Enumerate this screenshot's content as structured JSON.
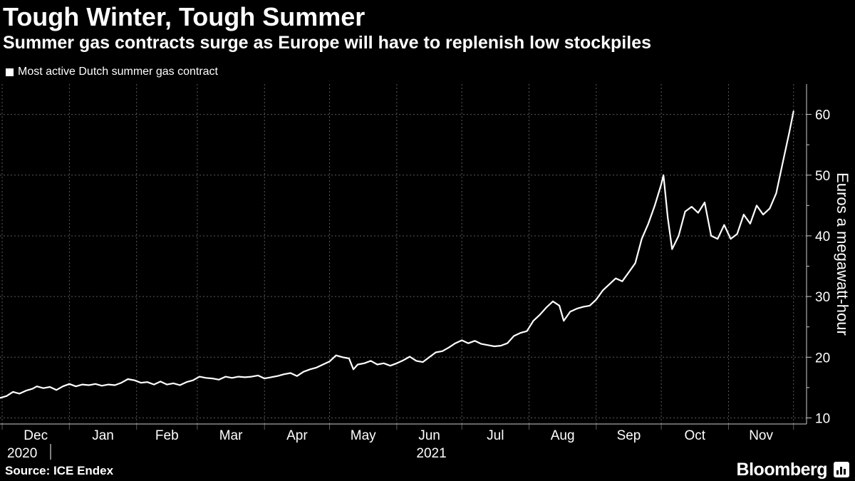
{
  "header": {
    "title": "Tough Winter, Tough Summer",
    "subtitle": "Summer gas contracts surge as Europe will have to replenish low stockpiles"
  },
  "footer": {
    "source": "Source: ICE Endex",
    "brand": "Bloomberg",
    "brand_icon": "bar-chart-icon"
  },
  "colors": {
    "background": "#000000",
    "text": "#ffffff",
    "line": "#ffffff",
    "grid": "#5a5a5a"
  },
  "chart_data": {
    "type": "line",
    "title": "Tough Winter, Tough Summer",
    "subtitle": "Summer gas contracts surge as Europe will have to replenish low stockpiles",
    "ylabel": "Euros a megawatt-hour",
    "xlabel": "",
    "y_axis_side": "right",
    "ylim": [
      9,
      65
    ],
    "xlim": [
      "2020-11-30",
      "2021-12-07"
    ],
    "y_ticks": [
      10,
      20,
      30,
      40,
      50,
      60
    ],
    "x_ticks": [
      {
        "date": "2020-12-01",
        "label": "Dec"
      },
      {
        "date": "2021-01-01",
        "label": "Jan"
      },
      {
        "date": "2021-02-01",
        "label": "Feb"
      },
      {
        "date": "2021-03-01",
        "label": "Mar"
      },
      {
        "date": "2021-04-01",
        "label": "Apr"
      },
      {
        "date": "2021-05-01",
        "label": "May"
      },
      {
        "date": "2021-06-01",
        "label": "Jun"
      },
      {
        "date": "2021-07-01",
        "label": "Jul"
      },
      {
        "date": "2021-08-01",
        "label": "Aug"
      },
      {
        "date": "2021-09-01",
        "label": "Sep"
      },
      {
        "date": "2021-10-01",
        "label": "Oct"
      },
      {
        "date": "2021-11-01",
        "label": "Nov"
      }
    ],
    "year_labels": [
      {
        "date": "2020-12-01",
        "label": "2020"
      },
      {
        "date": "2021-06-01",
        "label": "2021"
      }
    ],
    "grid": true,
    "legend_position": "top-left",
    "series": [
      {
        "name": "Most active Dutch summer gas contract",
        "color": "#ffffff",
        "points": [
          [
            "2020-11-30",
            13.3
          ],
          [
            "2020-12-03",
            13.6
          ],
          [
            "2020-12-06",
            14.3
          ],
          [
            "2020-12-09",
            14.0
          ],
          [
            "2020-12-12",
            14.5
          ],
          [
            "2020-12-15",
            14.8
          ],
          [
            "2020-12-17",
            15.2
          ],
          [
            "2020-12-20",
            14.9
          ],
          [
            "2020-12-23",
            15.1
          ],
          [
            "2020-12-26",
            14.6
          ],
          [
            "2020-12-29",
            15.2
          ],
          [
            "2021-01-01",
            15.6
          ],
          [
            "2021-01-04",
            15.2
          ],
          [
            "2021-01-07",
            15.5
          ],
          [
            "2021-01-10",
            15.4
          ],
          [
            "2021-01-13",
            15.6
          ],
          [
            "2021-01-16",
            15.3
          ],
          [
            "2021-01-19",
            15.5
          ],
          [
            "2021-01-22",
            15.4
          ],
          [
            "2021-01-25",
            15.8
          ],
          [
            "2021-01-28",
            16.4
          ],
          [
            "2021-01-31",
            16.2
          ],
          [
            "2021-02-03",
            15.8
          ],
          [
            "2021-02-06",
            15.9
          ],
          [
            "2021-02-09",
            15.5
          ],
          [
            "2021-02-12",
            16.0
          ],
          [
            "2021-02-15",
            15.5
          ],
          [
            "2021-02-18",
            15.7
          ],
          [
            "2021-02-21",
            15.4
          ],
          [
            "2021-02-24",
            15.9
          ],
          [
            "2021-02-27",
            16.2
          ],
          [
            "2021-03-02",
            16.8
          ],
          [
            "2021-03-05",
            16.6
          ],
          [
            "2021-03-08",
            16.5
          ],
          [
            "2021-03-11",
            16.3
          ],
          [
            "2021-03-14",
            16.8
          ],
          [
            "2021-03-17",
            16.6
          ],
          [
            "2021-03-20",
            16.8
          ],
          [
            "2021-03-23",
            16.7
          ],
          [
            "2021-03-26",
            16.8
          ],
          [
            "2021-03-29",
            17.0
          ],
          [
            "2021-04-01",
            16.5
          ],
          [
            "2021-04-04",
            16.7
          ],
          [
            "2021-04-07",
            16.9
          ],
          [
            "2021-04-10",
            17.2
          ],
          [
            "2021-04-13",
            17.4
          ],
          [
            "2021-04-16",
            16.9
          ],
          [
            "2021-04-19",
            17.6
          ],
          [
            "2021-04-22",
            18.0
          ],
          [
            "2021-04-25",
            18.3
          ],
          [
            "2021-04-28",
            18.8
          ],
          [
            "2021-05-01",
            19.3
          ],
          [
            "2021-05-04",
            20.3
          ],
          [
            "2021-05-07",
            20.0
          ],
          [
            "2021-05-10",
            19.8
          ],
          [
            "2021-05-12",
            18.0
          ],
          [
            "2021-05-14",
            18.8
          ],
          [
            "2021-05-17",
            19.0
          ],
          [
            "2021-05-20",
            19.4
          ],
          [
            "2021-05-23",
            18.8
          ],
          [
            "2021-05-26",
            19.0
          ],
          [
            "2021-05-29",
            18.6
          ],
          [
            "2021-06-01",
            19.0
          ],
          [
            "2021-06-04",
            19.5
          ],
          [
            "2021-06-07",
            20.1
          ],
          [
            "2021-06-10",
            19.4
          ],
          [
            "2021-06-13",
            19.2
          ],
          [
            "2021-06-16",
            20.0
          ],
          [
            "2021-06-19",
            20.8
          ],
          [
            "2021-06-22",
            21.0
          ],
          [
            "2021-06-25",
            21.6
          ],
          [
            "2021-06-28",
            22.3
          ],
          [
            "2021-07-01",
            22.8
          ],
          [
            "2021-07-04",
            22.3
          ],
          [
            "2021-07-07",
            22.7
          ],
          [
            "2021-07-10",
            22.2
          ],
          [
            "2021-07-13",
            22.0
          ],
          [
            "2021-07-16",
            21.8
          ],
          [
            "2021-07-19",
            21.9
          ],
          [
            "2021-07-22",
            22.3
          ],
          [
            "2021-07-25",
            23.5
          ],
          [
            "2021-07-28",
            24.0
          ],
          [
            "2021-07-31",
            24.3
          ],
          [
            "2021-08-03",
            26.0
          ],
          [
            "2021-08-06",
            27.0
          ],
          [
            "2021-08-09",
            28.2
          ],
          [
            "2021-08-12",
            29.2
          ],
          [
            "2021-08-15",
            28.5
          ],
          [
            "2021-08-17",
            26.0
          ],
          [
            "2021-08-20",
            27.5
          ],
          [
            "2021-08-23",
            28.0
          ],
          [
            "2021-08-26",
            28.3
          ],
          [
            "2021-08-29",
            28.5
          ],
          [
            "2021-09-01",
            29.5
          ],
          [
            "2021-09-04",
            31.0
          ],
          [
            "2021-09-07",
            32.0
          ],
          [
            "2021-09-10",
            33.0
          ],
          [
            "2021-09-13",
            32.5
          ],
          [
            "2021-09-16",
            34.0
          ],
          [
            "2021-09-19",
            35.5
          ],
          [
            "2021-09-22",
            39.5
          ],
          [
            "2021-09-25",
            42.0
          ],
          [
            "2021-09-28",
            45.0
          ],
          [
            "2021-10-01",
            48.5
          ],
          [
            "2021-10-02",
            50.0
          ],
          [
            "2021-10-04",
            43.0
          ],
          [
            "2021-10-06",
            37.8
          ],
          [
            "2021-10-09",
            40.0
          ],
          [
            "2021-10-12",
            44.0
          ],
          [
            "2021-10-15",
            44.8
          ],
          [
            "2021-10-18",
            43.8
          ],
          [
            "2021-10-21",
            45.5
          ],
          [
            "2021-10-24",
            40.0
          ],
          [
            "2021-10-27",
            39.5
          ],
          [
            "2021-10-30",
            41.8
          ],
          [
            "2021-11-02",
            39.5
          ],
          [
            "2021-11-05",
            40.3
          ],
          [
            "2021-11-08",
            43.5
          ],
          [
            "2021-11-11",
            42.0
          ],
          [
            "2021-11-14",
            45.0
          ],
          [
            "2021-11-17",
            43.5
          ],
          [
            "2021-11-20",
            44.5
          ],
          [
            "2021-11-23",
            47.0
          ],
          [
            "2021-11-26",
            52.0
          ],
          [
            "2021-11-29",
            57.0
          ],
          [
            "2021-12-01",
            60.5
          ]
        ]
      }
    ]
  }
}
